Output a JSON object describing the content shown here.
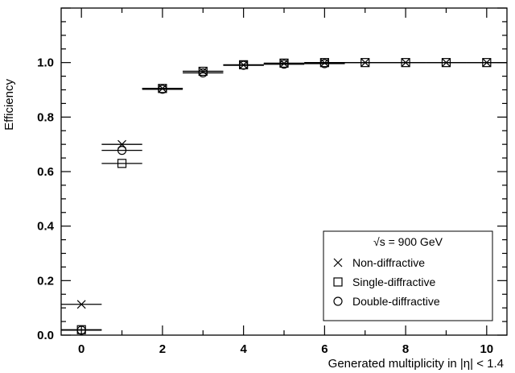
{
  "chart_data": {
    "type": "scatter",
    "xlabel": "Generated multiplicity in |η| < 1.4",
    "ylabel": "Efficiency",
    "xlim": [
      -0.5,
      10.5
    ],
    "ylim": [
      0,
      1.2
    ],
    "xticks": [
      0,
      2,
      4,
      6,
      8,
      10
    ],
    "xtick_labels": [
      "0",
      "2",
      "4",
      "6",
      "8",
      "10"
    ],
    "yticks": [
      0,
      0.2,
      0.4,
      0.6,
      0.8,
      1.0
    ],
    "ytick_labels": [
      "0.0",
      "0.2",
      "0.4",
      "0.6",
      "0.8",
      "1.0"
    ],
    "grid": false,
    "legend": {
      "placement": "bottom-right",
      "header": "√s = 900 GeV"
    },
    "series": [
      {
        "name": "Non-diffractive",
        "marker": "cross",
        "x": [
          0,
          1,
          2,
          3,
          4,
          5,
          6,
          7,
          8,
          9,
          10
        ],
        "y": [
          0.113,
          0.7,
          0.905,
          0.968,
          0.991,
          0.997,
          0.999,
          1.0,
          1.0,
          1.0,
          1.0
        ],
        "xerr": [
          0.5,
          0.5,
          0.5,
          0.5,
          0.5,
          0.5,
          0.5,
          0.5,
          0.5,
          0.5,
          0.5
        ]
      },
      {
        "name": "Single-diffractive",
        "marker": "square",
        "x": [
          0,
          1,
          2,
          3,
          4,
          5,
          6,
          7,
          8,
          9,
          10
        ],
        "y": [
          0.02,
          0.63,
          0.905,
          0.968,
          0.992,
          0.998,
          1.0,
          1.0,
          1.0,
          1.0,
          1.0
        ],
        "xerr": [
          0.5,
          0.5,
          0.5,
          0.5,
          0.5,
          0.5,
          0.5,
          0.5,
          0.5,
          0.5,
          0.5
        ]
      },
      {
        "name": "Double-diffractive",
        "marker": "circle",
        "x": [
          0,
          1,
          2,
          3,
          4,
          5,
          6
        ],
        "y": [
          0.018,
          0.678,
          0.902,
          0.962,
          0.99,
          0.994,
          0.996
        ],
        "xerr": [
          0.5,
          0.5,
          0.5,
          0.5,
          0.5,
          0.5,
          0.5
        ]
      }
    ]
  }
}
